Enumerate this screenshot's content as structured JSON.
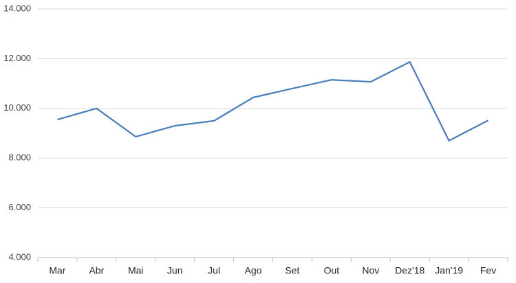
{
  "chart_data": {
    "type": "line",
    "categories": [
      "Mar",
      "Abr",
      "Mai",
      "Jun",
      "Jul",
      "Ago",
      "Set",
      "Out",
      "Nov",
      "Dez'18",
      "Jan'19",
      "Fev"
    ],
    "values": [
      9550,
      10000,
      8860,
      9300,
      9500,
      10440,
      10800,
      11150,
      11070,
      11870,
      8700,
      9520
    ],
    "color": "#4a7ebb",
    "ylim": [
      4000,
      14000
    ],
    "yticks": [
      {
        "value": 4000,
        "label": "4.000"
      },
      {
        "value": 6000,
        "label": "6.000"
      },
      {
        "value": 8000,
        "label": "8.000"
      },
      {
        "value": 10000,
        "label": "10.000"
      },
      {
        "value": 12000,
        "label": "12.000"
      },
      {
        "value": 14000,
        "label": "14.000"
      }
    ],
    "grid": true
  }
}
